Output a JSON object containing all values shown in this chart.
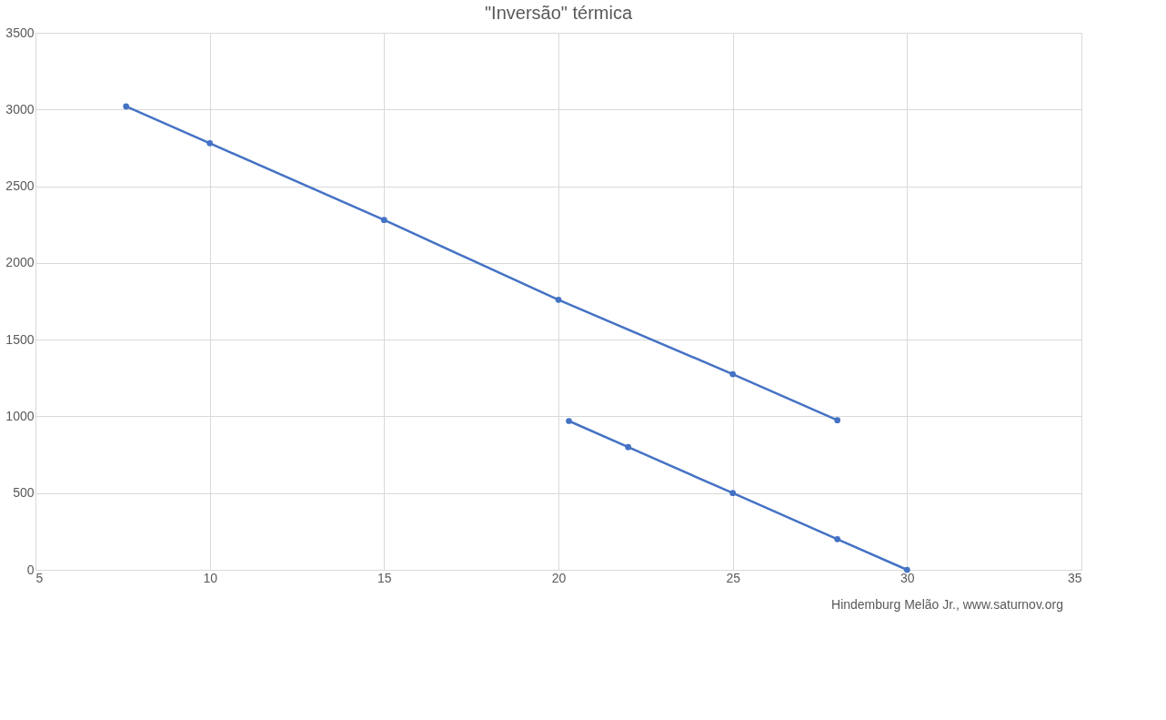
{
  "chart_data": {
    "type": "line",
    "title": "\"Inversão\" térmica",
    "series": [
      {
        "color": "#4472c4",
        "x": [
          7.6,
          10,
          15,
          20,
          25,
          28
        ],
        "values": [
          3020,
          2780,
          2280,
          1760,
          1275,
          975
        ]
      },
      {
        "color": "#4472c4",
        "x": [
          20.3,
          22,
          25,
          28,
          30
        ],
        "values": [
          970,
          800,
          500,
          200,
          0
        ]
      }
    ],
    "xlim": [
      5,
      35
    ],
    "xticks": [
      5,
      10,
      15,
      20,
      25,
      30,
      35
    ],
    "ylim": [
      0,
      3500
    ],
    "yticks": [
      0,
      500,
      1000,
      1500,
      2000,
      2500,
      3000,
      3500
    ],
    "grid": true,
    "marker": "circle",
    "line_style": "solid",
    "annotations": [
      "Hindemburg Melão Jr., www.saturnov.org"
    ]
  }
}
